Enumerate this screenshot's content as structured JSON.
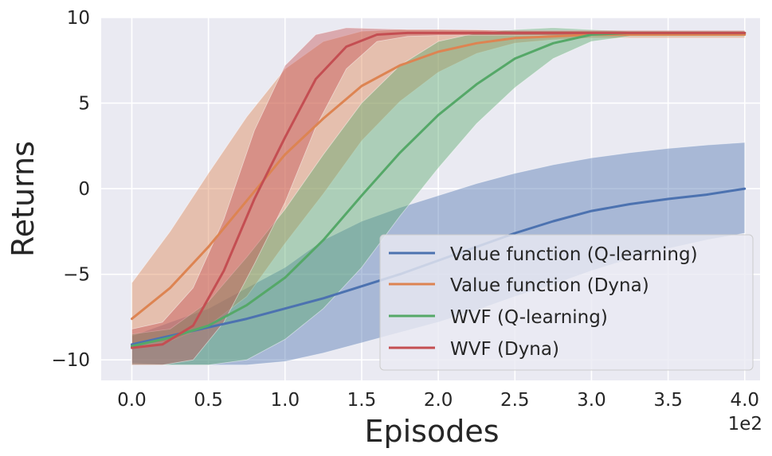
{
  "chart_data": {
    "type": "line",
    "title": "",
    "xlabel": "Episodes",
    "ylabel": "Returns",
    "x_offset_label": "1e2",
    "xlim": [
      -0.2,
      4.1
    ],
    "ylim": [
      -11.2,
      10
    ],
    "xticks": [
      0.0,
      0.5,
      1.0,
      1.5,
      2.0,
      2.5,
      3.0,
      3.5,
      4.0
    ],
    "xtick_labels": [
      "0.0",
      "0.5",
      "1.0",
      "1.5",
      "2.0",
      "2.5",
      "3.0",
      "3.5",
      "4.0"
    ],
    "yticks": [
      -10,
      -5,
      0,
      5,
      10
    ],
    "ytick_labels": [
      "−10",
      "−5",
      "0",
      "5",
      "10"
    ],
    "grid": true,
    "legend_position": "lower-right",
    "series": [
      {
        "name": "Value function (Q-learning)",
        "color": "#4c72b0",
        "x": [
          0.0,
          0.25,
          0.5,
          0.75,
          1.0,
          1.25,
          1.5,
          1.75,
          2.0,
          2.25,
          2.5,
          2.75,
          3.0,
          3.25,
          3.5,
          3.75,
          4.0
        ],
        "mean": [
          -9.1,
          -8.6,
          -8.1,
          -7.6,
          -7.0,
          -6.4,
          -5.7,
          -5.0,
          -4.2,
          -3.4,
          -2.6,
          -1.9,
          -1.3,
          -0.9,
          -0.6,
          -0.35,
          0.0
        ],
        "upper": [
          -8.6,
          -7.8,
          -7.0,
          -5.8,
          -4.6,
          -3.0,
          -1.9,
          -1.1,
          -0.4,
          0.3,
          0.9,
          1.4,
          1.8,
          2.1,
          2.35,
          2.55,
          2.7
        ],
        "lower": [
          -10.2,
          -10.3,
          -10.3,
          -10.3,
          -10.1,
          -9.6,
          -9.0,
          -8.4,
          -7.8,
          -7.1,
          -6.3,
          -5.6,
          -4.8,
          -4.1,
          -3.5,
          -3.0,
          -2.6
        ]
      },
      {
        "name": "Value function (Dyna)",
        "color": "#dd8452",
        "x": [
          0.0,
          0.25,
          0.5,
          0.75,
          1.0,
          1.25,
          1.5,
          1.75,
          2.0,
          2.25,
          2.5,
          2.75,
          3.0,
          3.25,
          3.5,
          3.75,
          4.0
        ],
        "mean": [
          -7.6,
          -5.8,
          -3.4,
          -0.7,
          2.0,
          4.1,
          6.0,
          7.2,
          8.0,
          8.5,
          8.8,
          8.9,
          9.0,
          9.0,
          9.0,
          9.0,
          9.0
        ],
        "upper": [
          -5.5,
          -2.5,
          0.9,
          4.2,
          7.0,
          8.6,
          9.2,
          9.3,
          9.3,
          9.3,
          9.2,
          9.2,
          9.2,
          9.2,
          9.2,
          9.2,
          9.2
        ],
        "lower": [
          -9.2,
          -8.9,
          -8.0,
          -6.3,
          -3.2,
          -0.3,
          2.8,
          5.1,
          6.8,
          7.9,
          8.5,
          8.7,
          8.8,
          8.8,
          8.8,
          8.8,
          8.8
        ]
      },
      {
        "name": "WVF (Q-learning)",
        "color": "#55a868",
        "x": [
          0.0,
          0.25,
          0.5,
          0.75,
          1.0,
          1.25,
          1.5,
          1.75,
          2.0,
          2.25,
          2.5,
          2.75,
          3.0,
          3.25,
          3.5,
          3.75,
          4.0
        ],
        "mean": [
          -9.2,
          -8.7,
          -8.0,
          -6.8,
          -5.2,
          -3.0,
          -0.4,
          2.1,
          4.3,
          6.1,
          7.6,
          8.5,
          9.0,
          9.1,
          9.1,
          9.1,
          9.1
        ],
        "upper": [
          -8.5,
          -8.2,
          -6.6,
          -4.0,
          -1.2,
          2.0,
          5.0,
          7.2,
          8.6,
          9.1,
          9.3,
          9.4,
          9.3,
          9.2,
          9.2,
          9.2,
          9.2
        ],
        "lower": [
          -10.3,
          -10.3,
          -10.3,
          -10.0,
          -8.8,
          -7.0,
          -4.6,
          -1.6,
          1.2,
          3.8,
          5.9,
          7.6,
          8.6,
          8.9,
          8.9,
          8.9,
          8.9
        ]
      },
      {
        "name": "WVF (Dyna)",
        "color": "#c44e52",
        "x": [
          0.0,
          0.2,
          0.4,
          0.6,
          0.8,
          1.0,
          1.2,
          1.4,
          1.6,
          1.8,
          2.0,
          2.5,
          3.0,
          3.5,
          4.0
        ],
        "mean": [
          -9.3,
          -9.1,
          -8.0,
          -4.8,
          -0.6,
          3.0,
          6.4,
          8.3,
          9.0,
          9.1,
          9.1,
          9.1,
          9.1,
          9.1,
          9.1
        ],
        "upper": [
          -8.2,
          -7.8,
          -5.8,
          -1.8,
          3.4,
          7.2,
          9.0,
          9.4,
          9.35,
          9.3,
          9.3,
          9.25,
          9.25,
          9.25,
          9.25
        ],
        "lower": [
          -10.3,
          -10.3,
          -10.0,
          -7.8,
          -4.4,
          -0.8,
          3.6,
          7.0,
          8.6,
          8.9,
          8.95,
          8.95,
          8.95,
          8.95,
          8.95
        ]
      }
    ]
  }
}
